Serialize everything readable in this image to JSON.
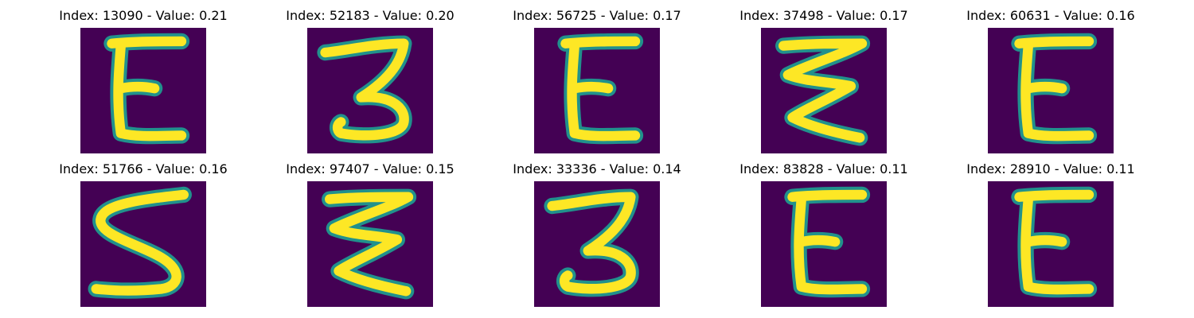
{
  "colors": {
    "background": "#440154",
    "stroke": "#fde725",
    "edge": "#21918c"
  },
  "panels": [
    {
      "title": "Index: 13090 - Value: 0.21",
      "glyph": "E"
    },
    {
      "title": "Index: 52183 - Value: 0.20",
      "glyph": "3"
    },
    {
      "title": "Index: 56725 - Value: 0.17",
      "glyph": "E"
    },
    {
      "title": "Index: 37498 - Value: 0.17",
      "glyph": "zigzag"
    },
    {
      "title": "Index: 60631 - Value: 0.16",
      "glyph": "E"
    },
    {
      "title": "Index: 51766 - Value: 0.16",
      "glyph": "S"
    },
    {
      "title": "Index: 97407 - Value: 0.15",
      "glyph": "zigzag"
    },
    {
      "title": "Index: 33336 - Value: 0.14",
      "glyph": "3"
    },
    {
      "title": "Index: 83828 - Value: 0.11",
      "glyph": "E"
    },
    {
      "title": "Index: 28910 - Value: 0.11",
      "glyph": "E"
    }
  ]
}
